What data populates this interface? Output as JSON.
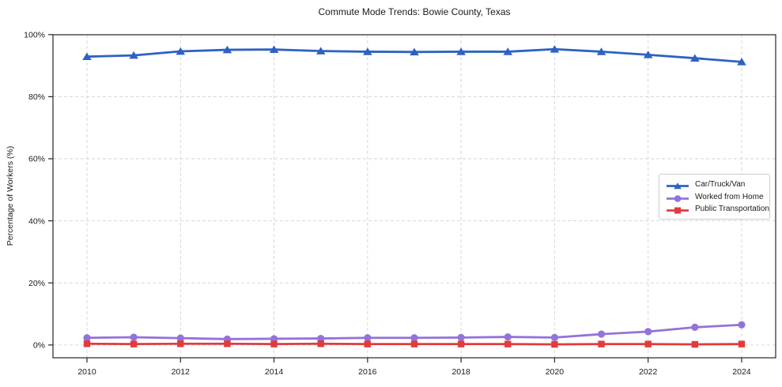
{
  "chart_data": {
    "type": "line",
    "title": "Commute Mode Trends: Bowie County, Texas",
    "xlabel": "",
    "ylabel": "Percentage of Workers (%)",
    "x": [
      2010,
      2011,
      2012,
      2013,
      2014,
      2015,
      2016,
      2017,
      2018,
      2019,
      2020,
      2021,
      2022,
      2023,
      2024
    ],
    "series": [
      {
        "name": "Car/Truck/Van",
        "color": "#2d62c4",
        "marker": "triangle",
        "values": [
          92.9,
          93.3,
          94.6,
          95.1,
          95.2,
          94.7,
          94.5,
          94.4,
          94.5,
          94.5,
          95.3,
          94.5,
          93.5,
          92.4,
          91.2
        ]
      },
      {
        "name": "Worked from Home",
        "color": "#9472db",
        "marker": "circle",
        "values": [
          2.3,
          2.5,
          2.2,
          1.9,
          2.0,
          2.1,
          2.3,
          2.3,
          2.4,
          2.6,
          2.4,
          3.5,
          4.3,
          5.7,
          6.5
        ]
      },
      {
        "name": "Public Transportation",
        "color": "#e23b3c",
        "marker": "square",
        "values": [
          0.4,
          0.3,
          0.4,
          0.4,
          0.3,
          0.4,
          0.3,
          0.3,
          0.3,
          0.3,
          0.2,
          0.3,
          0.3,
          0.2,
          0.3
        ]
      }
    ],
    "x_ticks": [
      2010,
      2012,
      2014,
      2016,
      2018,
      2020,
      2022,
      2024
    ],
    "y_ticks": [
      0,
      20,
      40,
      60,
      80,
      100
    ],
    "y_tick_suffix": "%",
    "ylim": [
      -4,
      100
    ],
    "xlim": [
      2009.27,
      2024.73
    ],
    "grid": true,
    "grid_style": "dashed",
    "legend_position": "center-right",
    "axis_color": "#262626",
    "grid_color": "#d3d3d3"
  }
}
